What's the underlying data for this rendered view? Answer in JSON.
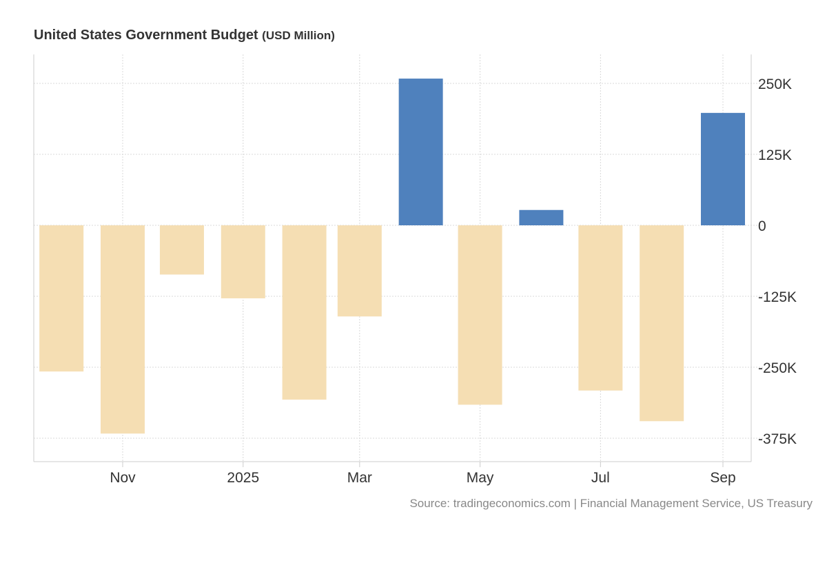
{
  "chart_data": {
    "type": "bar",
    "title": "United States Government Budget",
    "unit": "(USD Million)",
    "source": "Source: tradingeconomics.com | Financial Management Service, US Treasury",
    "categories": [
      "2024-10",
      "2024-11",
      "2024-12",
      "2025-01",
      "2025-02",
      "2025-03",
      "2025-04",
      "2025-05",
      "2025-06",
      "2025-07",
      "2025-08",
      "2025-09"
    ],
    "values": [
      -257500,
      -366800,
      -86700,
      -128600,
      -307000,
      -160500,
      258400,
      -316000,
      27000,
      -291000,
      -345000,
      198000
    ],
    "x_tick_labels": [
      {
        "date": "2024-11-01",
        "label": "Nov"
      },
      {
        "date": "2025-01-01",
        "label": "2025"
      },
      {
        "date": "2025-03-01",
        "label": "Mar"
      },
      {
        "date": "2025-05-01",
        "label": "May"
      },
      {
        "date": "2025-07-01",
        "label": "Jul"
      },
      {
        "date": "2025-09-01",
        "label": "Sep"
      }
    ],
    "y_ticks": [
      {
        "value": 250000,
        "label": "250K"
      },
      {
        "value": 125000,
        "label": "125K"
      },
      {
        "value": 0,
        "label": "0"
      },
      {
        "value": -125000,
        "label": "-125K"
      },
      {
        "value": -250000,
        "label": "-250K"
      },
      {
        "value": -375000,
        "label": "-375K"
      }
    ],
    "ylim": [
      -420000,
      302000
    ],
    "y_axis_position": "right",
    "grid": true,
    "colors": {
      "positive": "#4f81bd",
      "negative": "#f5deb3"
    }
  }
}
